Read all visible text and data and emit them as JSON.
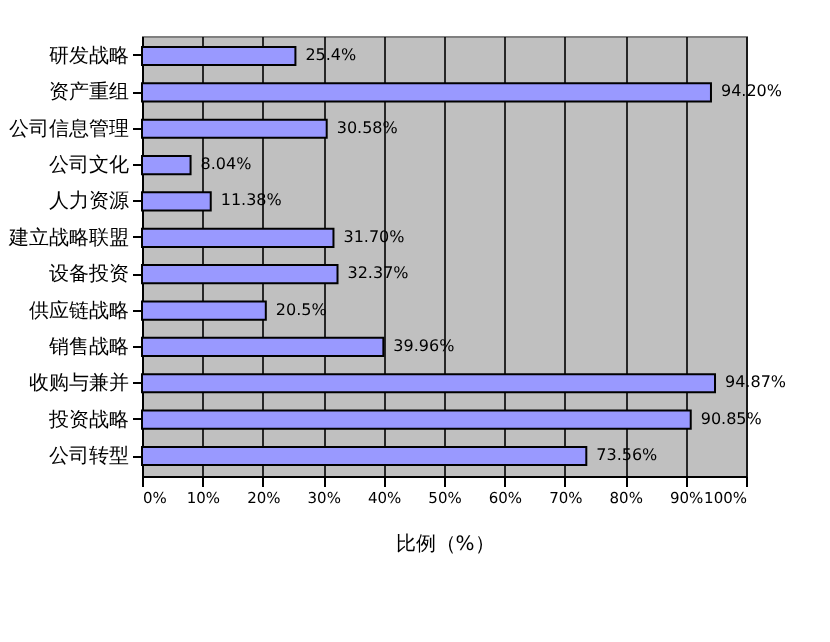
{
  "chart_data": {
    "type": "bar",
    "orientation": "horizontal",
    "xlabel": "比例（%）",
    "categories": [
      "研发战略",
      "资产重组",
      "公司信息管理",
      "公司文化",
      "人力资源",
      "建立战略联盟",
      "设备投资",
      "供应链战略",
      "销售战略",
      "收购与兼并",
      "投资战略",
      "公司转型"
    ],
    "values": [
      25.4,
      94.2,
      30.58,
      8.04,
      11.38,
      31.7,
      32.37,
      20.5,
      39.96,
      94.87,
      90.85,
      73.56
    ],
    "value_labels": [
      "25.4%",
      "94.20%",
      "30.58%",
      "8.04%",
      "11.38%",
      "31.70%",
      "32.37%",
      "20.5%",
      "39.96%",
      "94.87%",
      "90.85%",
      "73.56%"
    ],
    "color": "#9999ff",
    "xlim": [
      0,
      100
    ],
    "xticks": [
      {
        "value": 0,
        "label": "0%"
      },
      {
        "value": 10,
        "label": "10%"
      },
      {
        "value": 20,
        "label": "20%"
      },
      {
        "value": 30,
        "label": "30%"
      },
      {
        "value": 40,
        "label": "40%"
      },
      {
        "value": 50,
        "label": "50%"
      },
      {
        "value": 60,
        "label": "60%"
      },
      {
        "value": 70,
        "label": "70%"
      },
      {
        "value": 80,
        "label": "80%"
      },
      {
        "value": 90,
        "label": "90%"
      },
      {
        "value": 100,
        "label": "100%"
      }
    ],
    "grid": "x"
  }
}
